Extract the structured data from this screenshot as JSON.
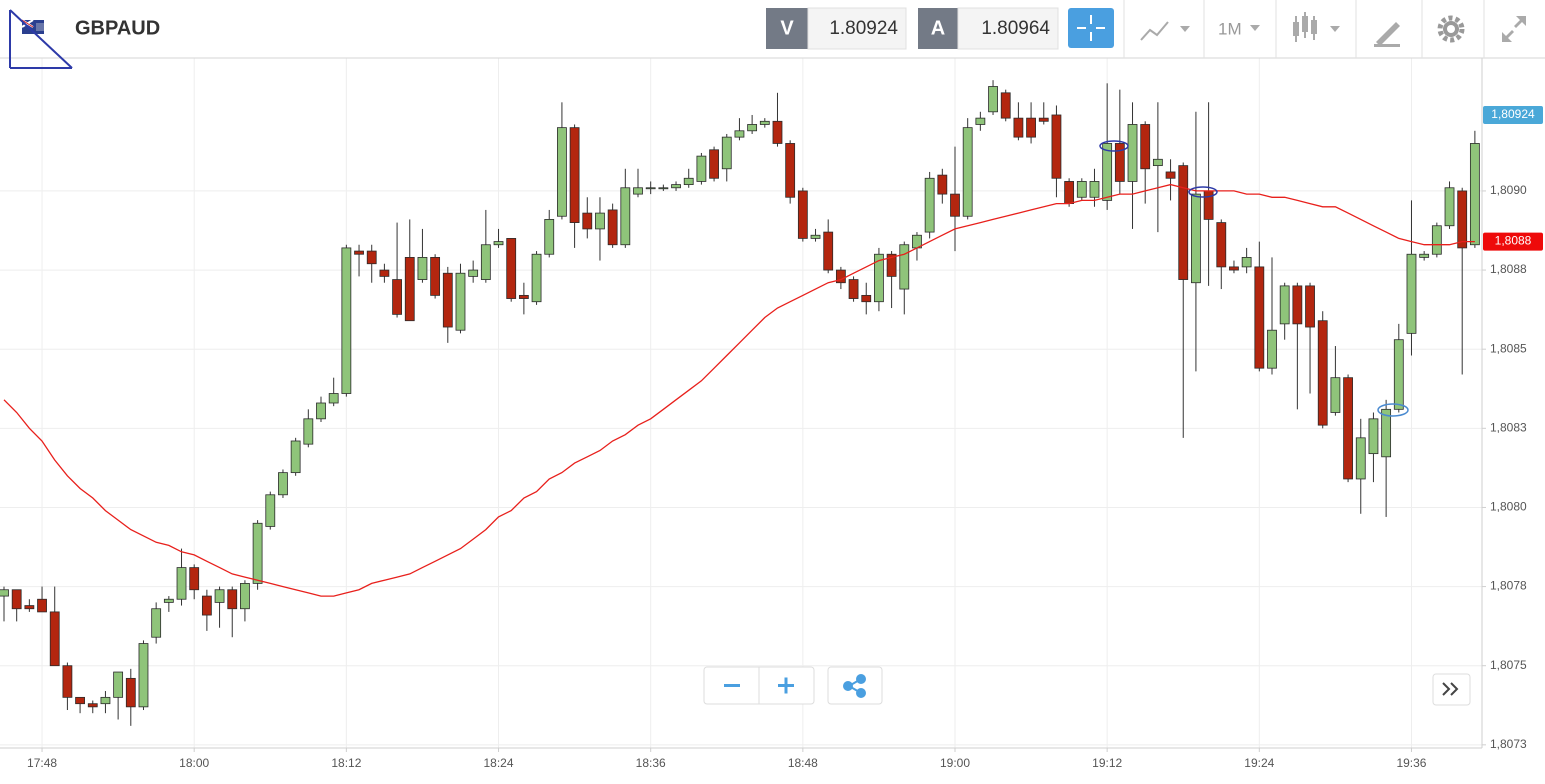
{
  "header": {
    "symbol": "GBPAUD",
    "bid_label": "V",
    "bid": 1.80924,
    "ask_label": "A",
    "ask": 1.80964,
    "timeframe": "1M"
  },
  "chart_data": {
    "type": "candlestick",
    "x": [
      null,
      null,
      null,
      "17:48",
      null,
      null,
      null,
      null,
      null,
      null,
      null,
      null,
      null,
      null,
      null,
      "18:00",
      null,
      null,
      null,
      null,
      null,
      null,
      null,
      null,
      null,
      null,
      null,
      "18:12",
      null,
      null,
      null,
      null,
      null,
      null,
      null,
      null,
      null,
      null,
      null,
      "18:24",
      null,
      null,
      null,
      null,
      null,
      null,
      null,
      null,
      null,
      null,
      null,
      "18:36",
      null,
      null,
      null,
      null,
      null,
      null,
      null,
      null,
      null,
      null,
      null,
      "18:48",
      null,
      null,
      null,
      null,
      null,
      null,
      null,
      null,
      null,
      null,
      null,
      "19:00",
      null,
      null,
      null,
      null,
      null,
      null,
      null,
      null,
      null,
      null,
      null,
      "19:12",
      null,
      null,
      null,
      null,
      null,
      null,
      null,
      null,
      null,
      null,
      null,
      "19:24",
      null,
      null,
      null,
      null,
      null,
      null,
      null,
      null,
      null,
      null,
      null,
      "19:36",
      null,
      null,
      null,
      null,
      null
    ],
    "open": [
      1.80772,
      1.80774,
      1.80769,
      1.80771,
      1.80767,
      1.8075,
      1.8074,
      1.80738,
      1.80738,
      1.8074,
      1.80746,
      1.80737,
      1.80759,
      1.8077,
      1.80771,
      1.80781,
      1.80772,
      1.8077,
      1.80774,
      1.80768,
      1.80776,
      1.80794,
      1.80804,
      1.80811,
      1.8082,
      1.80828,
      1.80833,
      1.80836,
      1.80881,
      1.80881,
      1.80875,
      1.80872,
      1.80879,
      1.80872,
      1.80879,
      1.80874,
      1.80856,
      1.80873,
      1.80872,
      1.80883,
      1.80885,
      1.80867,
      1.80865,
      1.8088,
      1.80892,
      1.8092,
      1.80893,
      1.80888,
      1.80894,
      1.80883,
      1.80899,
      1.80901,
      1.80901,
      1.80901,
      1.80902,
      1.80903,
      1.80913,
      1.80907,
      1.80917,
      1.80919,
      1.80921,
      1.80922,
      1.80915,
      1.809,
      1.80885,
      1.80887,
      1.80875,
      1.80872,
      1.80867,
      1.80865,
      1.8088,
      1.80869,
      1.80882,
      1.80887,
      1.80905,
      1.80899,
      1.80892,
      1.80921,
      1.80925,
      1.80931,
      1.80923,
      1.80923,
      1.80923,
      1.80924,
      1.80903,
      1.80898,
      1.80898,
      1.80897,
      1.80915,
      1.80903,
      1.80921,
      1.80908,
      1.80906,
      1.80908,
      1.80871,
      1.809,
      1.8089,
      1.80876,
      1.80876,
      1.80876,
      1.80844,
      1.80858,
      1.8087,
      1.8087,
      1.80859,
      1.8083,
      1.80841,
      1.80809,
      1.80817,
      1.80816,
      1.80831,
      1.80855,
      1.80879,
      1.8088,
      1.80889,
      1.809,
      1.80883
    ],
    "high": [
      1.80775,
      1.80774,
      1.80771,
      1.80775,
      1.80775,
      1.80751,
      1.8074,
      1.80739,
      1.80742,
      1.80748,
      1.80749,
      1.80758,
      1.8077,
      1.80772,
      1.80787,
      1.80782,
      1.80774,
      1.80775,
      1.80775,
      1.80777,
      1.80796,
      1.80805,
      1.80812,
      1.80822,
      1.80831,
      1.80835,
      1.80841,
      1.80883,
      1.80883,
      1.80883,
      1.80877,
      1.8089,
      1.80891,
      1.80888,
      1.8088,
      1.80876,
      1.80877,
      1.80878,
      1.80894,
      1.80888,
      1.80885,
      1.80871,
      1.80881,
      1.80894,
      1.80928,
      1.80921,
      1.80898,
      1.80898,
      1.80896,
      1.80907,
      1.80907,
      1.80903,
      1.80902,
      1.80903,
      1.80907,
      1.80912,
      1.80914,
      1.80918,
      1.80923,
      1.80924,
      1.80923,
      1.80931,
      1.80916,
      1.80901,
      1.80888,
      1.80891,
      1.80876,
      1.80873,
      1.80871,
      1.80882,
      1.80881,
      1.80884,
      1.80887,
      1.80906,
      1.80907,
      1.80914,
      1.80923,
      1.80925,
      1.80935,
      1.80932,
      1.80928,
      1.80928,
      1.80928,
      1.80927,
      1.80904,
      1.80904,
      1.80907,
      1.80934,
      1.80932,
      1.80928,
      1.80922,
      1.80928,
      1.8091,
      1.80909,
      1.80925,
      1.80928,
      1.80891,
      1.80878,
      1.80882,
      1.80884,
      1.80879,
      1.80871,
      1.80871,
      1.80871,
      1.80862,
      1.80851,
      1.80842,
      1.80828,
      1.8083,
      1.80834,
      1.80858,
      1.80897,
      1.80881,
      1.8089,
      1.80903,
      1.80901,
      1.80919
    ],
    "low": [
      1.80764,
      1.80764,
      1.80767,
      1.80767,
      1.8075,
      1.80736,
      1.80735,
      1.80735,
      1.80735,
      1.80733,
      1.80731,
      1.80736,
      1.80757,
      1.80767,
      1.80769,
      1.80771,
      1.80761,
      1.80762,
      1.80759,
      1.80764,
      1.80774,
      1.80793,
      1.80803,
      1.8081,
      1.80819,
      1.80827,
      1.80832,
      1.80835,
      1.80873,
      1.80871,
      1.80871,
      1.8086,
      1.80859,
      1.80871,
      1.80866,
      1.80852,
      1.80855,
      1.80871,
      1.80871,
      1.80882,
      1.80865,
      1.80861,
      1.80864,
      1.80879,
      1.80891,
      1.80882,
      1.80885,
      1.80878,
      1.80882,
      1.80882,
      1.80898,
      1.80899,
      1.809,
      1.809,
      1.80901,
      1.80902,
      1.80903,
      1.80903,
      1.80916,
      1.80918,
      1.8092,
      1.80914,
      1.80896,
      1.80884,
      1.80884,
      1.80874,
      1.80869,
      1.80865,
      1.80861,
      1.80862,
      1.80863,
      1.80861,
      1.80878,
      1.80885,
      1.80896,
      1.80881,
      1.80891,
      1.80919,
      1.80924,
      1.80922,
      1.80916,
      1.80915,
      1.80921,
      1.80898,
      1.80895,
      1.80897,
      1.80895,
      1.80894,
      1.80899,
      1.80888,
      1.80896,
      1.80887,
      1.80897,
      1.80822,
      1.80843,
      1.8087,
      1.80869,
      1.80874,
      1.80874,
      1.80843,
      1.80842,
      1.80853,
      1.80831,
      1.80836,
      1.80825,
      1.80829,
      1.80808,
      1.80798,
      1.80808,
      1.80797,
      1.8083,
      1.80848,
      1.80878,
      1.80879,
      1.80888,
      1.80842,
      1.80882
    ],
    "close": [
      1.80774,
      1.80768,
      1.80768,
      1.80767,
      1.8075,
      1.8074,
      1.80738,
      1.80737,
      1.8074,
      1.80748,
      1.80737,
      1.80757,
      1.80768,
      1.80771,
      1.80781,
      1.80774,
      1.80766,
      1.80774,
      1.80768,
      1.80776,
      1.80795,
      1.80804,
      1.80811,
      1.80821,
      1.80828,
      1.80833,
      1.80836,
      1.80882,
      1.8088,
      1.80877,
      1.80873,
      1.80861,
      1.80859,
      1.80879,
      1.80867,
      1.80857,
      1.80874,
      1.80875,
      1.80883,
      1.80884,
      1.80866,
      1.80866,
      1.8088,
      1.80891,
      1.8092,
      1.8089,
      1.80888,
      1.80893,
      1.80883,
      1.80901,
      1.80901,
      1.80901,
      1.80901,
      1.80902,
      1.80904,
      1.80911,
      1.80904,
      1.80917,
      1.80919,
      1.80921,
      1.80922,
      1.80915,
      1.80898,
      1.80885,
      1.80886,
      1.80875,
      1.80871,
      1.80866,
      1.80865,
      1.8088,
      1.80873,
      1.80883,
      1.80886,
      1.80904,
      1.80899,
      1.80892,
      1.8092,
      1.80923,
      1.80933,
      1.80923,
      1.80917,
      1.80917,
      1.80922,
      1.80904,
      1.80896,
      1.80903,
      1.80903,
      1.80915,
      1.80903,
      1.80921,
      1.80907,
      1.8091,
      1.80904,
      1.80872,
      1.80899,
      1.80891,
      1.80876,
      1.80875,
      1.80879,
      1.80844,
      1.80856,
      1.8087,
      1.80858,
      1.80857,
      1.80826,
      1.80841,
      1.80809,
      1.80822,
      1.80828,
      1.80831,
      1.80853,
      1.8088,
      1.8088,
      1.80889,
      1.80901,
      1.80882,
      1.80915
    ],
    "up_color": "#8fc47a",
    "down_color": "#b3260f",
    "line": {
      "color": "#e8201c",
      "values": [
        1.80834,
        1.8083,
        1.80825,
        1.80821,
        1.80815,
        1.8081,
        1.80806,
        1.80803,
        1.80799,
        1.80796,
        1.80793,
        1.80791,
        1.80789,
        1.80788,
        1.80786,
        1.80785,
        1.80783,
        1.80781,
        1.80779,
        1.80778,
        1.80777,
        1.80776,
        1.80775,
        1.80774,
        1.80773,
        1.80772,
        1.80772,
        1.80773,
        1.80774,
        1.80776,
        1.80777,
        1.80778,
        1.80779,
        1.80781,
        1.80783,
        1.80785,
        1.80787,
        1.8079,
        1.80793,
        1.80797,
        1.80799,
        1.80803,
        1.80805,
        1.80809,
        1.80811,
        1.80814,
        1.80816,
        1.80818,
        1.80821,
        1.80823,
        1.80826,
        1.80828,
        1.80831,
        1.80834,
        1.80837,
        1.8084,
        1.80844,
        1.80848,
        1.80852,
        1.80856,
        1.8086,
        1.80863,
        1.80865,
        1.80867,
        1.80869,
        1.80871,
        1.80872,
        1.80874,
        1.80876,
        1.80878,
        1.80879,
        1.8088,
        1.80882,
        1.80884,
        1.80886,
        1.80888,
        1.80889,
        1.8089,
        1.80891,
        1.80892,
        1.80893,
        1.80894,
        1.80895,
        1.80896,
        1.80896,
        1.80897,
        1.80897,
        1.80898,
        1.80899,
        1.80899,
        1.809,
        1.80901,
        1.80902,
        1.80901,
        1.809,
        1.809,
        1.809,
        1.809,
        1.80899,
        1.80899,
        1.80898,
        1.80898,
        1.80897,
        1.80896,
        1.80895,
        1.80895,
        1.80893,
        1.80891,
        1.80889,
        1.80887,
        1.80885,
        1.80884,
        1.80883,
        1.80883,
        1.80883,
        1.80884,
        1.80884
      ]
    },
    "price_markers": [
      {
        "value": 1.80924,
        "label": "1,80924",
        "color": "#4aa8d8"
      },
      {
        "value": 1.80884,
        "label": "1,8088",
        "color": "#ee0a0a"
      }
    ],
    "ylim": [
      1.80724,
      1.80942
    ],
    "yticks": [
      {
        "value": 1.809,
        "label": "1,8090"
      },
      {
        "value": 1.80875,
        "label": "1,8088"
      },
      {
        "value": 1.8085,
        "label": "1,8085"
      },
      {
        "value": 1.80825,
        "label": "1,8083"
      },
      {
        "value": 1.808,
        "label": "1,8080"
      },
      {
        "value": 1.80775,
        "label": "1,8078"
      },
      {
        "value": 1.8075,
        "label": "1,8075"
      },
      {
        "value": 1.80725,
        "label": "1,8073"
      }
    ],
    "grid": true
  }
}
